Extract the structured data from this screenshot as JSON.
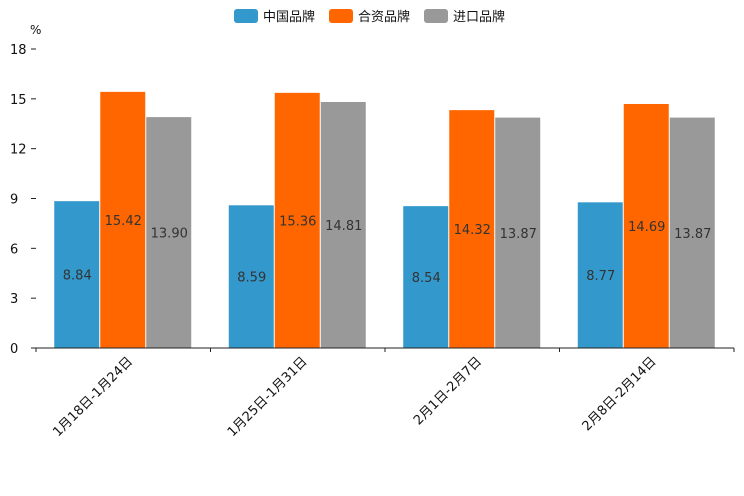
{
  "chart_data": {
    "type": "bar",
    "title": "",
    "xlabel": "",
    "ylabel": "%",
    "ylim": [
      0,
      18
    ],
    "yticks": [
      0,
      3,
      6,
      9,
      12,
      15,
      18
    ],
    "categories": [
      "1月18日-1月24日",
      "1月25日-1月31日",
      "2月1日-2月7日",
      "2月8日-2月14日"
    ],
    "series": [
      {
        "name": "中国品牌",
        "color": "#3399CC",
        "values": [
          8.84,
          8.59,
          8.54,
          8.77
        ],
        "labels": [
          "8.84",
          "8.59",
          "8.54",
          "8.77"
        ]
      },
      {
        "name": "合资品牌",
        "color": "#FF6600",
        "values": [
          15.42,
          15.36,
          14.32,
          14.69
        ],
        "labels": [
          "15.42",
          "15.36",
          "14.32",
          "14.69"
        ]
      },
      {
        "name": "进口品牌",
        "color": "#999999",
        "values": [
          13.9,
          14.81,
          13.87,
          13.87
        ],
        "labels": [
          "13.90",
          "14.81",
          "13.87",
          "13.87"
        ]
      }
    ],
    "legend_position": "top-center",
    "grid": false
  }
}
